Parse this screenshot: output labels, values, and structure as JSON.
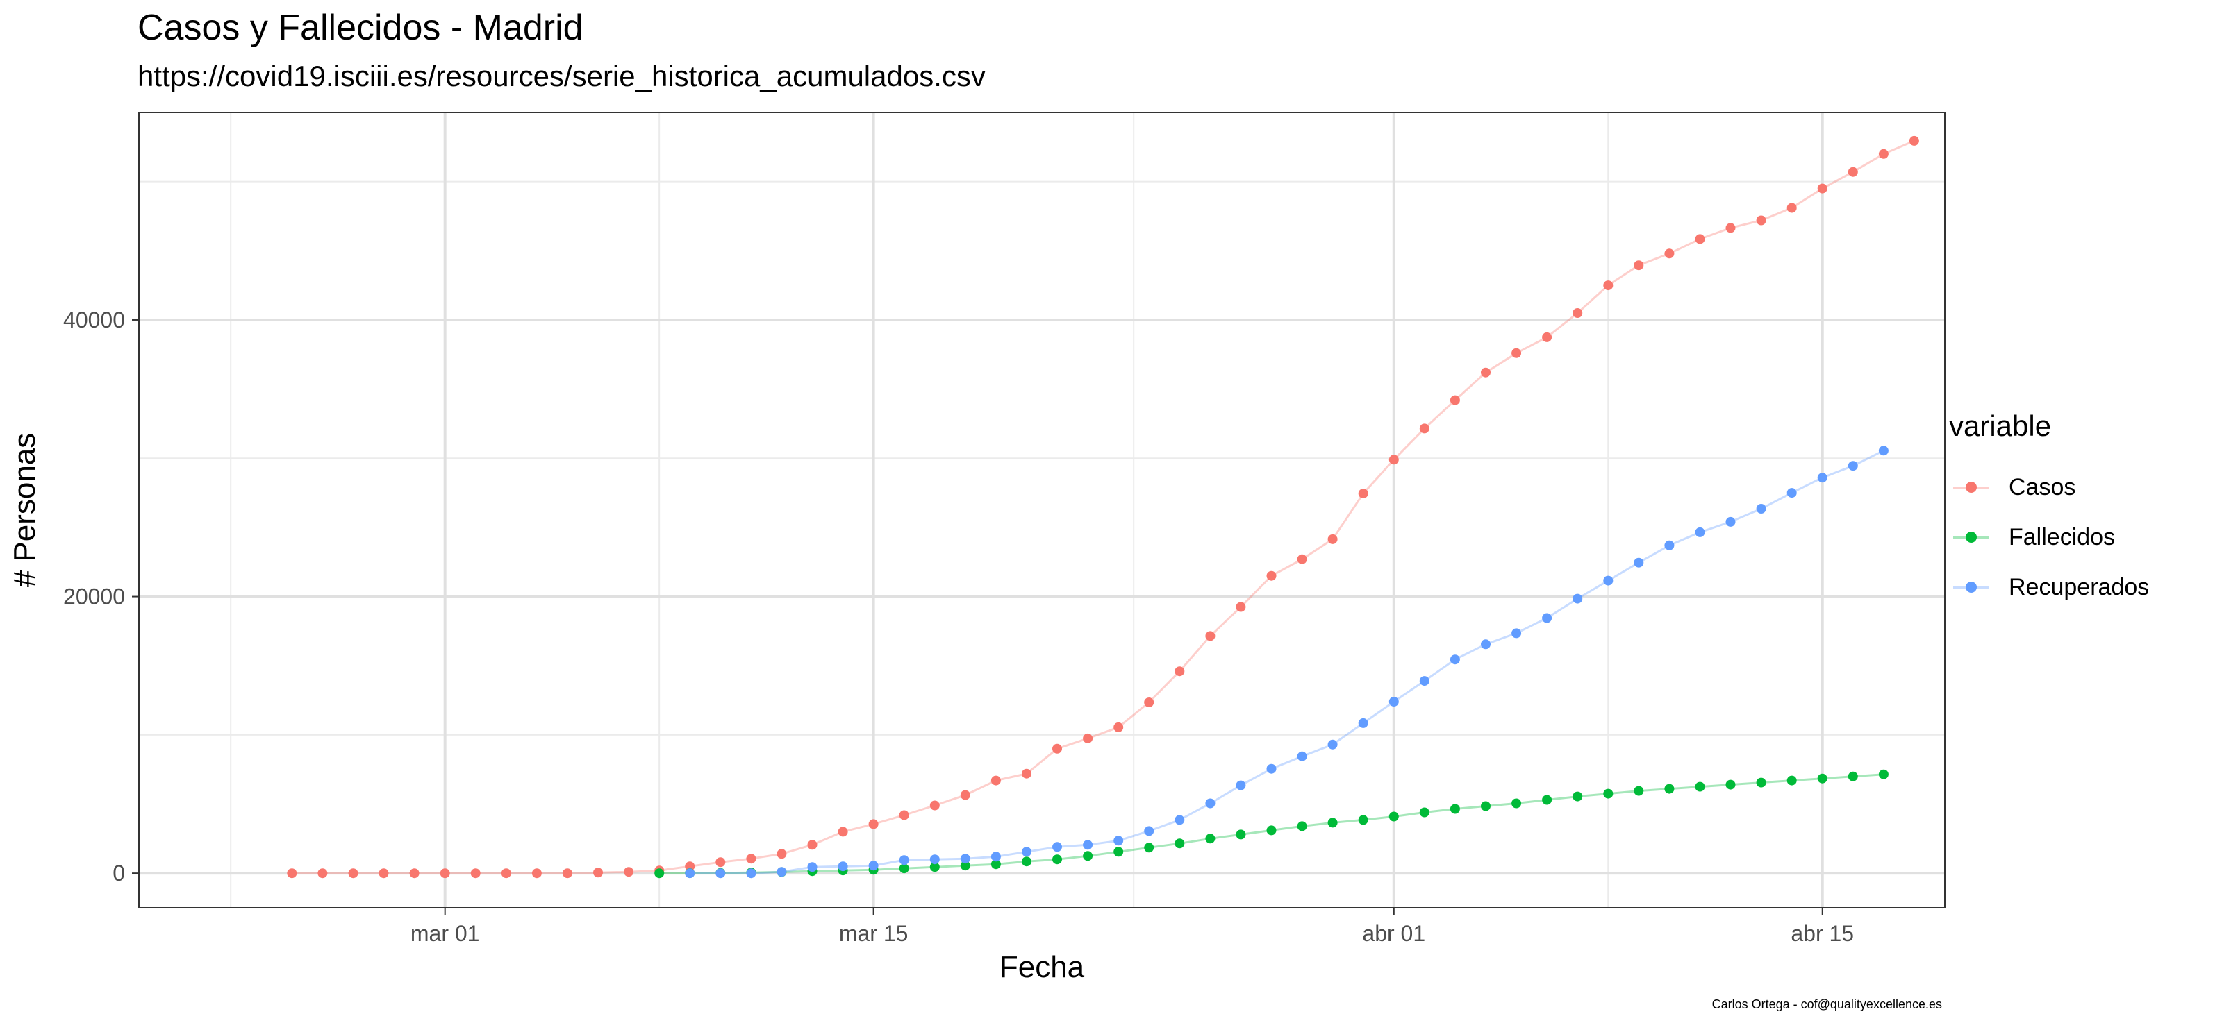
{
  "chart_data": {
    "type": "line",
    "title": "Casos y Fallecidos - Madrid",
    "subtitle": "https://covid19.isciii.es/resources/serie_historica_acumulados.csv",
    "xlabel": "Fecha",
    "ylabel": "# Personas",
    "caption": "Carlos Ortega - cof@qualityexcellence.es",
    "grid": true,
    "legend_title": "variable",
    "legend_position": "right",
    "xlim": [
      "2020-02-20",
      "2020-04-19"
    ],
    "ylim": [
      -2500,
      55000
    ],
    "x_ticks": [
      {
        "date": "2020-03-01",
        "label": "mar 01"
      },
      {
        "date": "2020-03-15",
        "label": "mar 15"
      },
      {
        "date": "2020-04-01",
        "label": "abr 01"
      },
      {
        "date": "2020-04-15",
        "label": "abr 15"
      }
    ],
    "y_ticks": [
      0,
      20000,
      40000
    ],
    "series": [
      {
        "name": "Casos",
        "color": "#F8766D",
        "start_date": "2020-02-25",
        "values": [
          0,
          0,
          0,
          0,
          0,
          0,
          0,
          0,
          0,
          0,
          50,
          100,
          200,
          500,
          800,
          1050,
          1400,
          2050,
          3000,
          3550,
          4200,
          4900,
          5650,
          6700,
          7200,
          9000,
          9750,
          10550,
          12350,
          14600,
          17150,
          19250,
          21500,
          22700,
          24150,
          27450,
          29900,
          32150,
          34200,
          36200,
          37600,
          38750,
          40500,
          42500,
          43950,
          44800,
          45850,
          46650,
          47200,
          48100,
          49500,
          50700,
          52000,
          52950
        ]
      },
      {
        "name": "Fallecidos",
        "color": "#00BA38",
        "start_date": "2020-03-08",
        "values": [
          0,
          10,
          20,
          50,
          90,
          150,
          200,
          250,
          350,
          450,
          550,
          650,
          850,
          1000,
          1250,
          1550,
          1850,
          2150,
          2500,
          2800,
          3100,
          3400,
          3650,
          3850,
          4100,
          4400,
          4650,
          4850,
          5050,
          5300,
          5550,
          5750,
          5950,
          6100,
          6250,
          6400,
          6550,
          6700,
          6850,
          7000,
          7150
        ]
      },
      {
        "name": "Recuperados",
        "color": "#619CFF",
        "start_date": "2020-03-09",
        "values": [
          0,
          0,
          0,
          100,
          450,
          500,
          550,
          950,
          1000,
          1050,
          1200,
          1550,
          1900,
          2050,
          2350,
          3050,
          3850,
          5050,
          6350,
          7550,
          8450,
          9300,
          10850,
          12400,
          13900,
          15450,
          16550,
          17350,
          18450,
          19850,
          21150,
          22450,
          23700,
          24650,
          25400,
          26350,
          27500,
          28600,
          29450,
          30550
        ]
      }
    ]
  }
}
